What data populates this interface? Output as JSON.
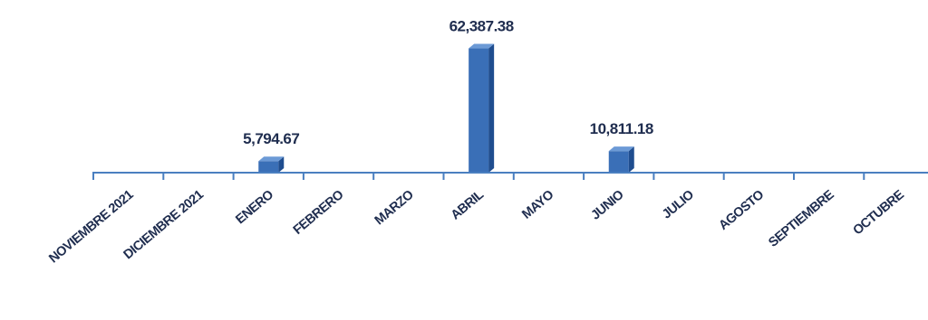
{
  "chart_data": {
    "type": "bar",
    "categories": [
      "NOVIEMBRE 2021",
      "DICIEMBRE 2021",
      "ENERO",
      "FEBRERO",
      "MARZO",
      "ABRIL",
      "MAYO",
      "JUNIO",
      "JULIO",
      "AGOSTO",
      "SEPTIEMBRE",
      "OCTUBRE"
    ],
    "values": [
      0,
      0,
      5794.67,
      0,
      0,
      62387.38,
      0,
      10811.18,
      0,
      0,
      0,
      0
    ],
    "data_labels": [
      "",
      "",
      "5,794.67",
      "",
      "",
      "62,387.38",
      "",
      "10,811.18",
      "",
      "",
      "",
      ""
    ],
    "title": "",
    "xlabel": "",
    "ylabel": "",
    "ylim": [
      0,
      64000
    ],
    "grid": false,
    "legend": "none",
    "colors": {
      "bar_front": "#3a6fb7",
      "bar_side": "#1f4d8f",
      "bar_top": "#6c9ad6",
      "axis": "#4a7fc0",
      "text": "#1f2d4f"
    }
  }
}
